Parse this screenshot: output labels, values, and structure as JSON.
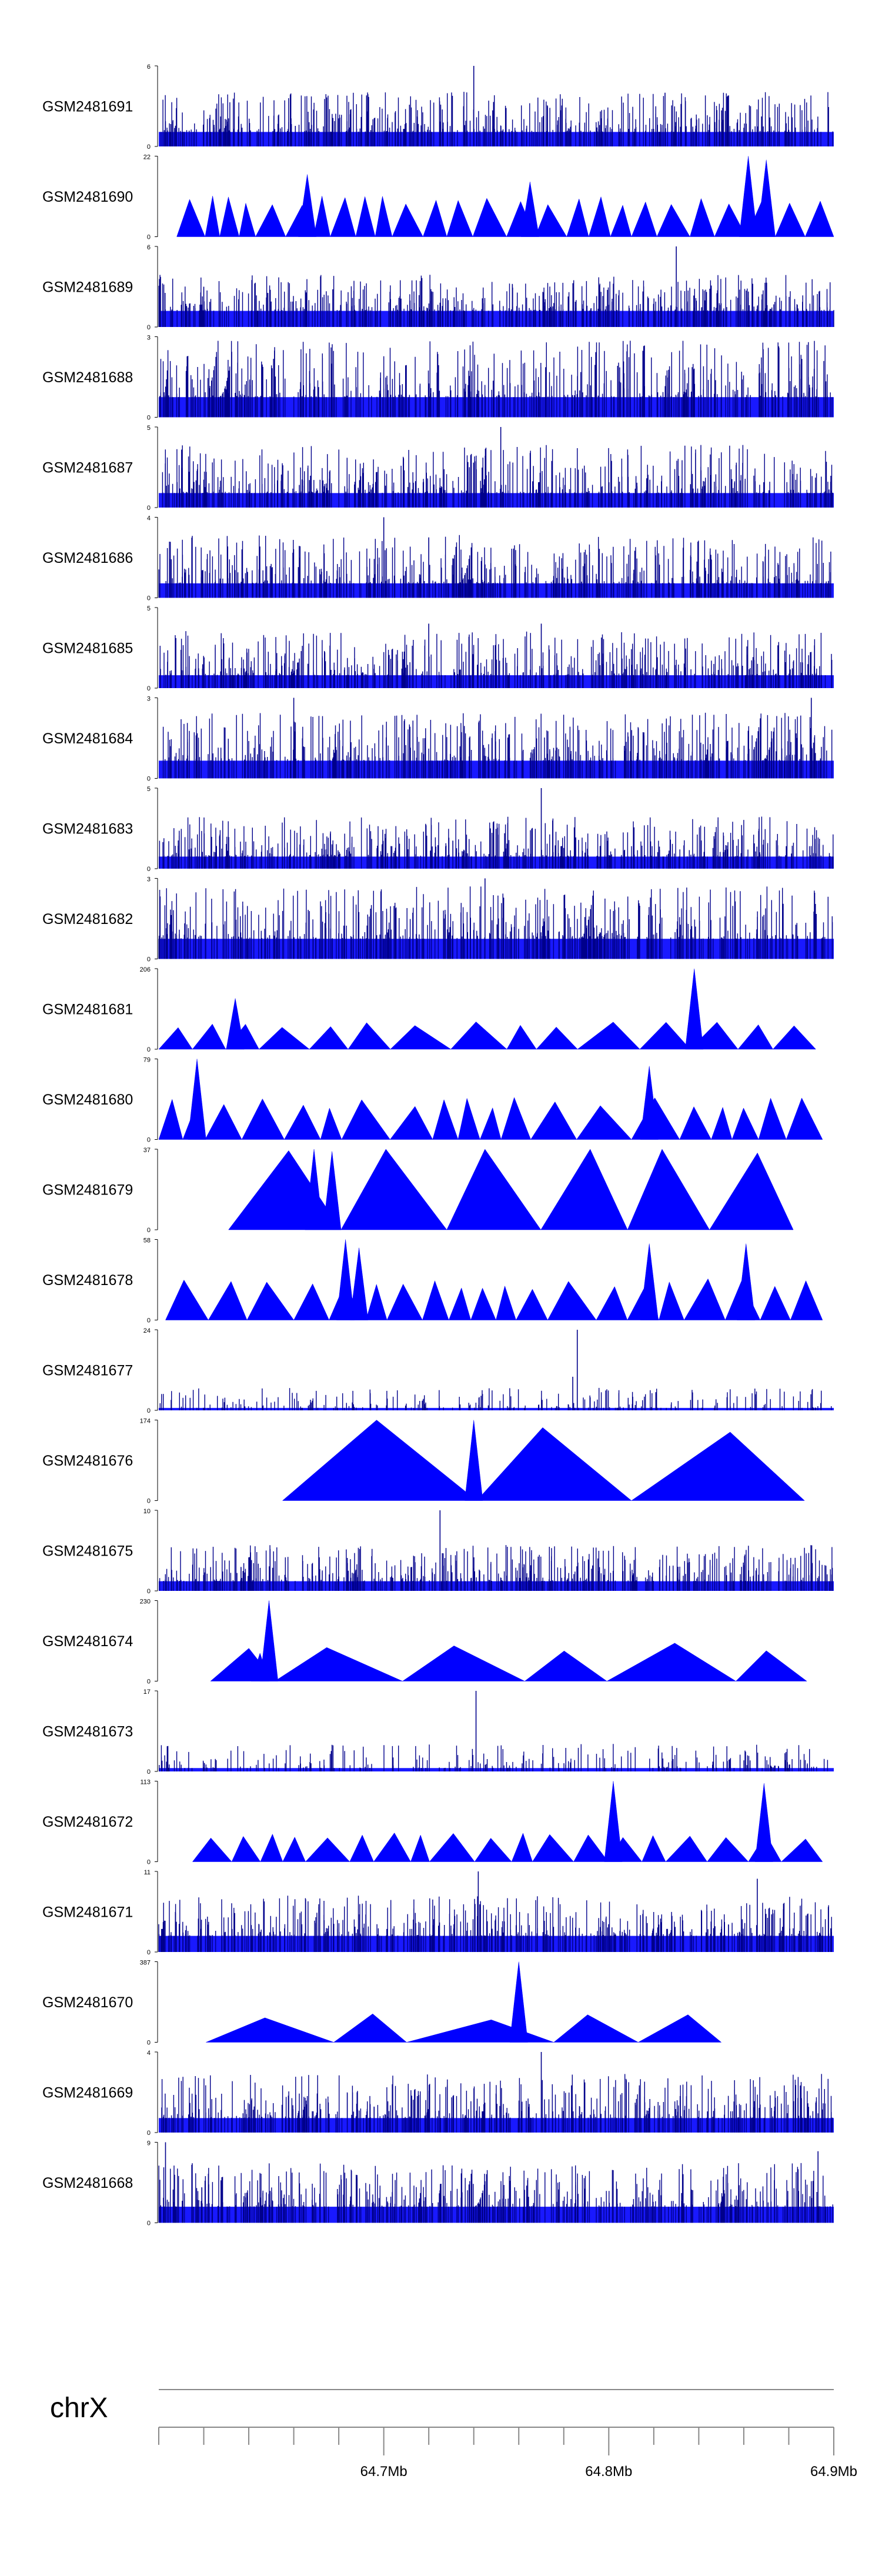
{
  "chart_data": {
    "type": "genome-coverage-tracks",
    "title": "",
    "color": "#0000ff",
    "line_color": "#00008b",
    "tracks": [
      {
        "name": "GSM2481691",
        "ymax": 6,
        "style": "dense",
        "seed": 11,
        "base": 0.18,
        "spike": 0.5,
        "peaks": [
          {
            "pos": 64.74,
            "value": 6
          },
          {
            "pos": 64.825,
            "value": 4
          },
          {
            "pos": 64.863,
            "value": 3
          }
        ]
      },
      {
        "name": "GSM2481690",
        "ymax": 22,
        "style": "triangles",
        "seed": 12,
        "start": 64.608,
        "end": 64.9,
        "n": 26,
        "height": 10,
        "peaks": [
          {
            "pos": 64.862,
            "value": 22
          },
          {
            "pos": 64.87,
            "value": 21
          },
          {
            "pos": 64.666,
            "value": 17
          },
          {
            "pos": 64.765,
            "value": 15
          }
        ]
      },
      {
        "name": "GSM2481689",
        "ymax": 6,
        "style": "dense",
        "seed": 13,
        "base": 0.2,
        "spike": 0.45,
        "peaks": [
          {
            "pos": 64.83,
            "value": 6
          },
          {
            "pos": 64.62,
            "value": 3
          }
        ]
      },
      {
        "name": "GSM2481688",
        "ymax": 3,
        "style": "dense",
        "seed": 14,
        "base": 0.25,
        "spike": 0.7,
        "peaks": []
      },
      {
        "name": "GSM2481687",
        "ymax": 5,
        "style": "dense",
        "seed": 15,
        "base": 0.18,
        "spike": 0.6,
        "peaks": [
          {
            "pos": 64.752,
            "value": 5
          }
        ]
      },
      {
        "name": "GSM2481686",
        "ymax": 4,
        "style": "dense",
        "seed": 16,
        "base": 0.18,
        "spike": 0.6,
        "peaks": [
          {
            "pos": 64.7,
            "value": 4
          },
          {
            "pos": 64.72,
            "value": 3
          }
        ]
      },
      {
        "name": "GSM2481685",
        "ymax": 5,
        "style": "dense",
        "seed": 17,
        "base": 0.16,
        "spike": 0.55,
        "peaks": [
          {
            "pos": 64.72,
            "value": 4
          },
          {
            "pos": 64.77,
            "value": 4
          }
        ]
      },
      {
        "name": "GSM2481684",
        "ymax": 3,
        "style": "dense",
        "seed": 18,
        "base": 0.22,
        "spike": 0.6,
        "peaks": [
          {
            "pos": 64.66,
            "value": 3
          },
          {
            "pos": 64.89,
            "value": 3
          }
        ]
      },
      {
        "name": "GSM2481683",
        "ymax": 5,
        "style": "dense",
        "seed": 19,
        "base": 0.15,
        "spike": 0.5,
        "peaks": [
          {
            "pos": 64.77,
            "value": 5
          }
        ]
      },
      {
        "name": "GSM2481682",
        "ymax": 3,
        "style": "dense",
        "seed": 20,
        "base": 0.25,
        "spike": 0.65,
        "peaks": [
          {
            "pos": 64.745,
            "value": 3
          }
        ]
      },
      {
        "name": "GSM2481681",
        "ymax": 206,
        "style": "triangles",
        "seed": 21,
        "start": 64.6,
        "end": 64.892,
        "n": 15,
        "height": 62,
        "peaks": [
          {
            "pos": 64.838,
            "value": 206
          },
          {
            "pos": 64.634,
            "value": 130
          }
        ]
      },
      {
        "name": "GSM2481680",
        "ymax": 79,
        "style": "triangles",
        "seed": 22,
        "start": 64.6,
        "end": 64.895,
        "n": 20,
        "height": 36,
        "peaks": [
          {
            "pos": 64.617,
            "value": 79
          },
          {
            "pos": 64.818,
            "value": 72
          }
        ]
      },
      {
        "name": "GSM2481679",
        "ymax": 37,
        "style": "triangles",
        "seed": 23,
        "start": 64.631,
        "end": 64.882,
        "n": 6,
        "height": 37,
        "peaks": [
          {
            "pos": 64.669,
            "value": 37
          },
          {
            "pos": 64.677,
            "value": 36
          }
        ]
      },
      {
        "name": "GSM2481678",
        "ymax": 58,
        "style": "triangles",
        "seed": 24,
        "start": 64.603,
        "end": 64.895,
        "n": 20,
        "height": 26,
        "peaks": [
          {
            "pos": 64.683,
            "value": 58
          },
          {
            "pos": 64.689,
            "value": 52
          },
          {
            "pos": 64.818,
            "value": 55
          },
          {
            "pos": 64.861,
            "value": 55
          }
        ]
      },
      {
        "name": "GSM2481677",
        "ymax": 24,
        "style": "sparse",
        "seed": 25,
        "base": 0.05,
        "spike": 0.25,
        "peaks": [
          {
            "pos": 64.786,
            "value": 24
          },
          {
            "pos": 64.784,
            "value": 10
          }
        ]
      },
      {
        "name": "GSM2481676",
        "ymax": 174,
        "style": "triangles",
        "seed": 26,
        "start": 64.655,
        "end": 64.887,
        "n": 3,
        "height": 170,
        "peaks": [
          {
            "pos": 64.74,
            "value": 174
          }
        ]
      },
      {
        "name": "GSM2481675",
        "ymax": 10,
        "style": "dense",
        "seed": 27,
        "base": 0.12,
        "spike": 0.45,
        "peaks": [
          {
            "pos": 64.725,
            "value": 10
          }
        ]
      },
      {
        "name": "GSM2481674",
        "ymax": 230,
        "style": "triangles",
        "seed": 28,
        "start": 64.623,
        "end": 64.888,
        "n": 6,
        "height": 95,
        "peaks": [
          {
            "pos": 64.649,
            "value": 230
          },
          {
            "pos": 64.645,
            "value": 80
          }
        ]
      },
      {
        "name": "GSM2481673",
        "ymax": 17,
        "style": "sparse",
        "seed": 29,
        "base": 0.07,
        "spike": 0.3,
        "peaks": [
          {
            "pos": 64.741,
            "value": 17
          }
        ]
      },
      {
        "name": "GSM2481672",
        "ymax": 113,
        "style": "triangles",
        "seed": 30,
        "start": 64.615,
        "end": 64.895,
        "n": 19,
        "height": 36,
        "peaks": [
          {
            "pos": 64.802,
            "value": 113
          },
          {
            "pos": 64.869,
            "value": 110
          }
        ]
      },
      {
        "name": "GSM2481671",
        "ymax": 11,
        "style": "dense",
        "seed": 31,
        "base": 0.2,
        "spike": 0.5,
        "peaks": [
          {
            "pos": 64.742,
            "value": 11
          },
          {
            "pos": 64.866,
            "value": 10
          }
        ]
      },
      {
        "name": "GSM2481670",
        "ymax": 387,
        "style": "triangles",
        "seed": 32,
        "start": 64.621,
        "end": 64.85,
        "n": 5,
        "height": 120,
        "peaks": [
          {
            "pos": 64.76,
            "value": 387
          }
        ]
      },
      {
        "name": "GSM2481669",
        "ymax": 4,
        "style": "dense",
        "seed": 33,
        "base": 0.18,
        "spike": 0.55,
        "peaks": [
          {
            "pos": 64.77,
            "value": 4
          }
        ]
      },
      {
        "name": "GSM2481668",
        "ymax": 9,
        "style": "dense",
        "seed": 34,
        "base": 0.2,
        "spike": 0.55,
        "peaks": [
          {
            "pos": 64.603,
            "value": 9
          },
          {
            "pos": 64.893,
            "value": 8
          }
        ]
      }
    ],
    "axis": {
      "chromosome": "chrX",
      "xlim": [
        64.6,
        64.9
      ],
      "minor_step": 0.02,
      "tick_positions": [
        64.7,
        64.8,
        64.9
      ],
      "tick_labels": [
        "64.7Mb",
        "64.8Mb",
        "64.9Mb"
      ]
    }
  }
}
